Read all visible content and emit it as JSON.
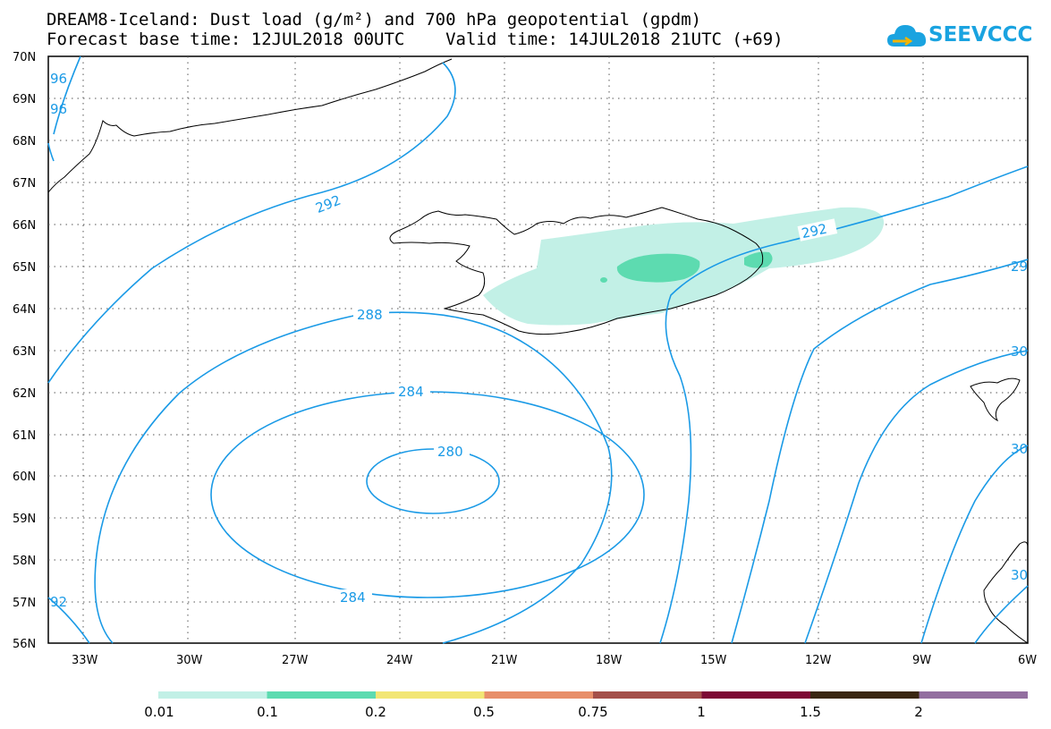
{
  "title": {
    "line1": "DREAM8-Iceland: Dust load (g/m²) and 700 hPa geopotential (gpdm)",
    "line2": "Forecast base time: 12JUL2018 00UTC    Valid time: 14JUL2018 21UTC (+69)"
  },
  "logo": {
    "text": "SEEVCCC",
    "color": "#1aa3e0"
  },
  "latitude_labels": [
    "70N",
    "69N",
    "68N",
    "67N",
    "66N",
    "65N",
    "64N",
    "63N",
    "62N",
    "61N",
    "60N",
    "59N",
    "58N",
    "57N",
    "56N"
  ],
  "longitude_labels": [
    "33W",
    "30W",
    "27W",
    "24W",
    "21W",
    "18W",
    "15W",
    "12W",
    "9W",
    "6W"
  ],
  "contour_labels": {
    "c280": "280",
    "c284_top": "284",
    "c284_bottom": "284",
    "c288": "288",
    "c292_left": "292",
    "c292_right": "292",
    "c296_a": "96",
    "c296_b": "96",
    "c292_edge_sw": "92",
    "c29_edge": "29",
    "c30_a": "30",
    "c30_b": "30",
    "c30_c": "30"
  },
  "colorbar": {
    "labels": [
      "0.01",
      "0.1",
      "0.2",
      "0.5",
      "0.75",
      "1",
      "1.5",
      "2"
    ],
    "colors": [
      "#c2f0e6",
      "#5ddbb0",
      "#f2e675",
      "#e88f6a",
      "#a4504a",
      "#7d0a35",
      "#3a2712",
      "#936fa0"
    ]
  },
  "colors": {
    "contour": "#1a9ae6",
    "dust_light": "#c2f0e6",
    "dust_medium": "#5ddbb0"
  }
}
